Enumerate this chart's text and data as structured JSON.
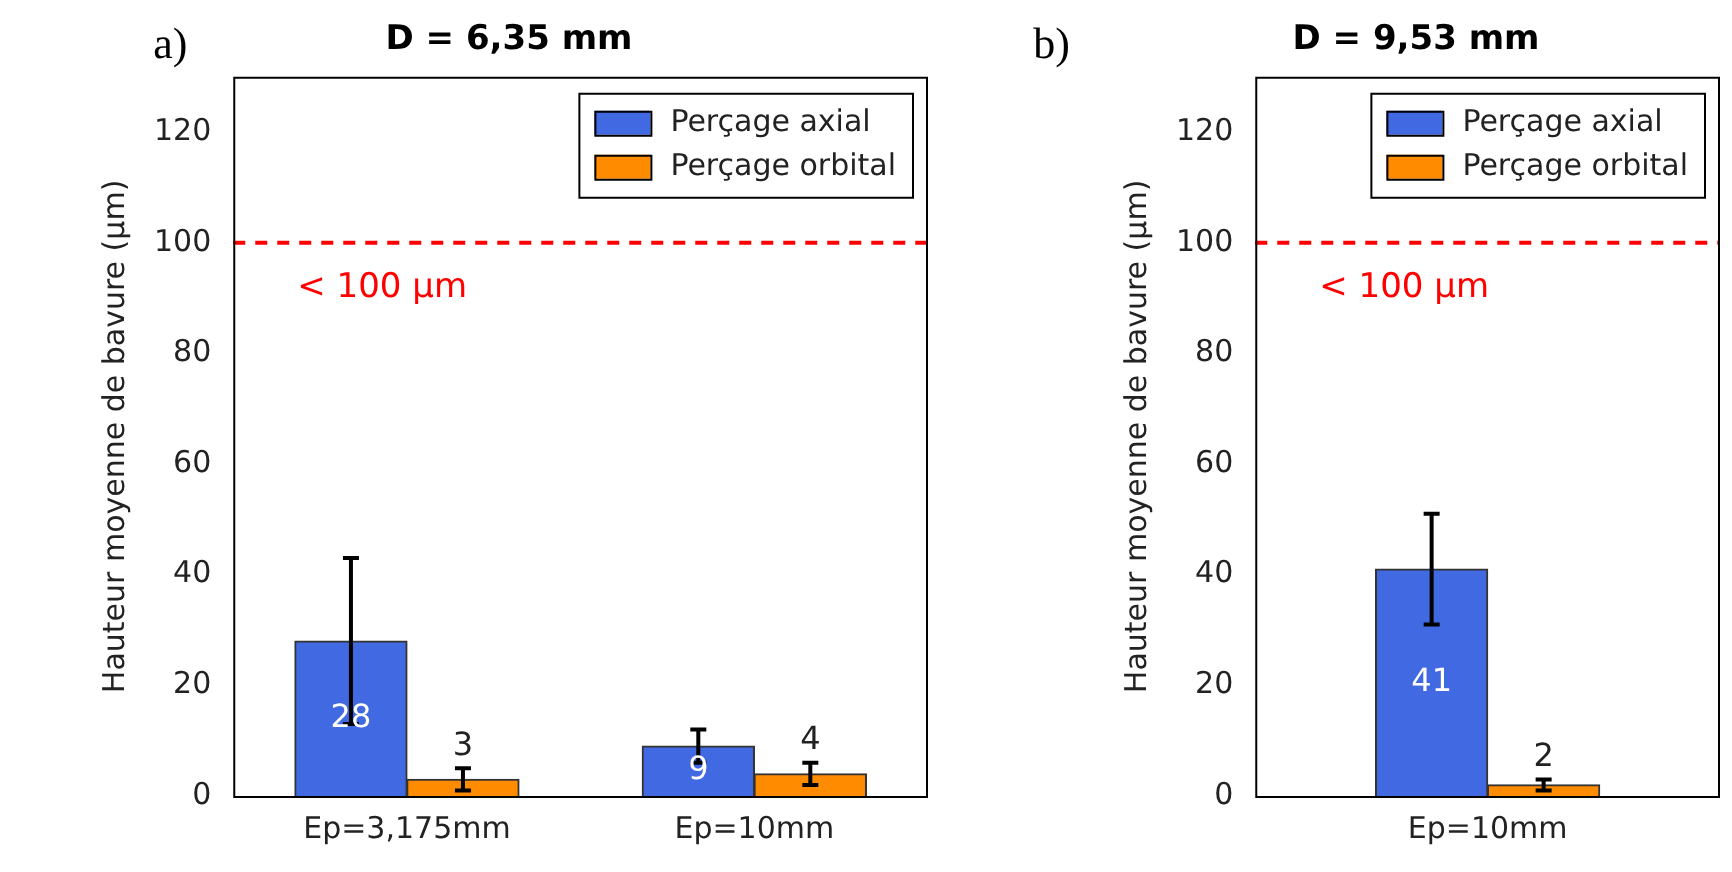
{
  "chart_data": [
    {
      "type": "bar",
      "title": "D = 6,35 mm",
      "ylabel": "Hauteur moyenne de bavure (µm)",
      "annotations": [
        "a)"
      ],
      "categories": [
        "Ep=3,175mm",
        "Ep=10mm"
      ],
      "series": [
        {
          "name": "Perçage axial",
          "color": "#4169e1",
          "values": [
            28,
            9
          ],
          "errors": [
            15,
            3
          ]
        },
        {
          "name": "Perçage orbital",
          "color": "#ff8c00",
          "values": [
            3,
            4
          ],
          "errors": [
            2,
            2
          ]
        }
      ],
      "ylim": [
        0,
        130
      ],
      "yticks": [
        0,
        20,
        40,
        60,
        80,
        100,
        120
      ],
      "grid": false,
      "legend": "top right",
      "data_labels": true,
      "ref_lines": [
        {
          "axis": "y",
          "value": 100,
          "label": "< 100 µm",
          "color": "#ff0000",
          "line_style": "dashed"
        }
      ]
    },
    {
      "type": "bar",
      "title": "D = 9,53 mm",
      "ylabel": "Hauteur moyenne de bavure (µm)",
      "annotations": [
        "b)"
      ],
      "categories": [
        "Ep=10mm"
      ],
      "series": [
        {
          "name": "Perçage axial",
          "color": "#4169e1",
          "values": [
            41
          ],
          "errors": [
            10
          ]
        },
        {
          "name": "Perçage orbital",
          "color": "#ff8c00",
          "values": [
            2
          ],
          "errors": [
            1
          ]
        }
      ],
      "ylim": [
        0,
        130
      ],
      "yticks": [
        0,
        20,
        40,
        60,
        80,
        100,
        120
      ],
      "grid": false,
      "legend": "top right",
      "data_labels": true,
      "ref_lines": [
        {
          "axis": "y",
          "value": 100,
          "label": "< 100 µm",
          "color": "#ff0000",
          "line_style": "dashed"
        }
      ]
    }
  ]
}
